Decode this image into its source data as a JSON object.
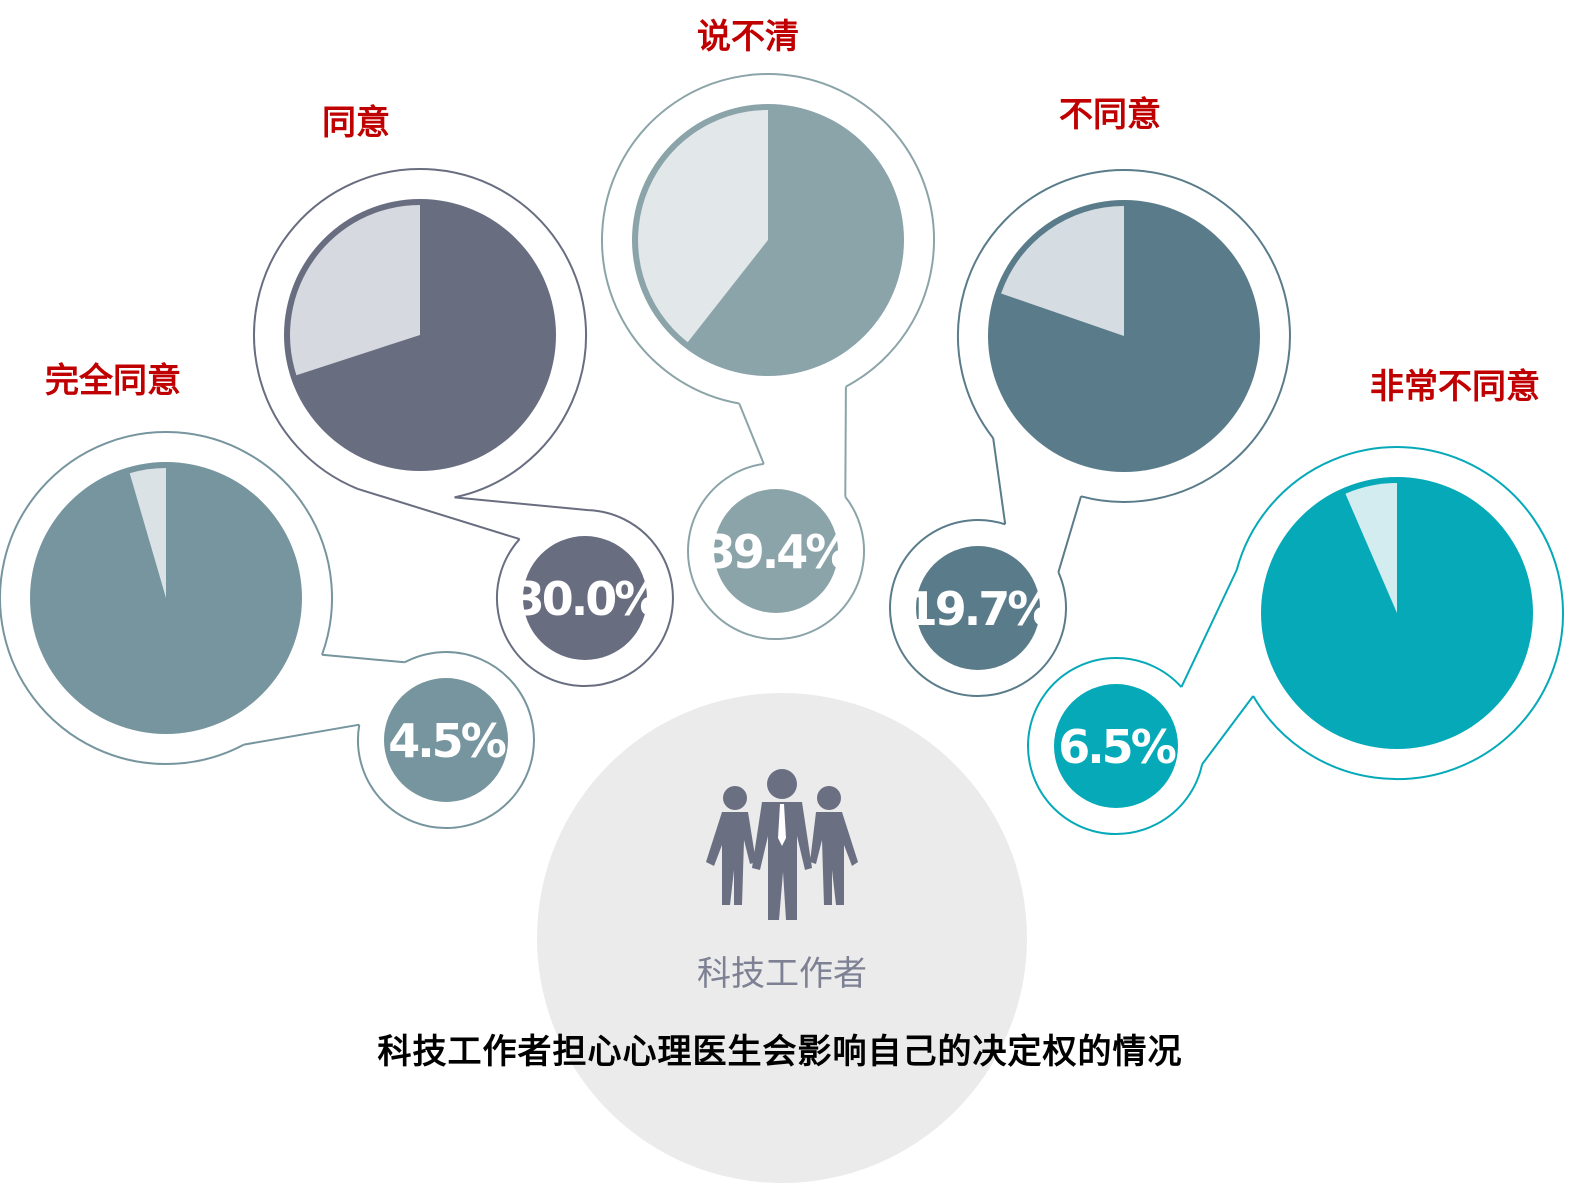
{
  "chart_data": {
    "type": "pie",
    "title": "科技工作者担心心理医生会影响自己的决定权的情况",
    "center_label": "科技工作者",
    "center_icon": "people-group-icon",
    "categories": [
      "完全同意",
      "同意",
      "说不清",
      "不同意",
      "非常不同意"
    ],
    "values": [
      4.5,
      30.0,
      39.4,
      19.7,
      6.5
    ],
    "value_labels": [
      "4.5%",
      "30.0%",
      "39.4%",
      "19.7%",
      "6.5%"
    ],
    "colors": [
      "#76959e",
      "#686d80",
      "#8ba4a9",
      "#5a7c8a",
      "#06a9b8"
    ],
    "light_colors": [
      "#dbe2e6",
      "#d7d9e0",
      "#e2e7ea",
      "#d5dde3",
      "#d2ecef"
    ],
    "label_color": "#c00000",
    "center_fill": "#ebebeb",
    "center_text_color": "#7d8193",
    "icon_color": "#6b6f82"
  }
}
